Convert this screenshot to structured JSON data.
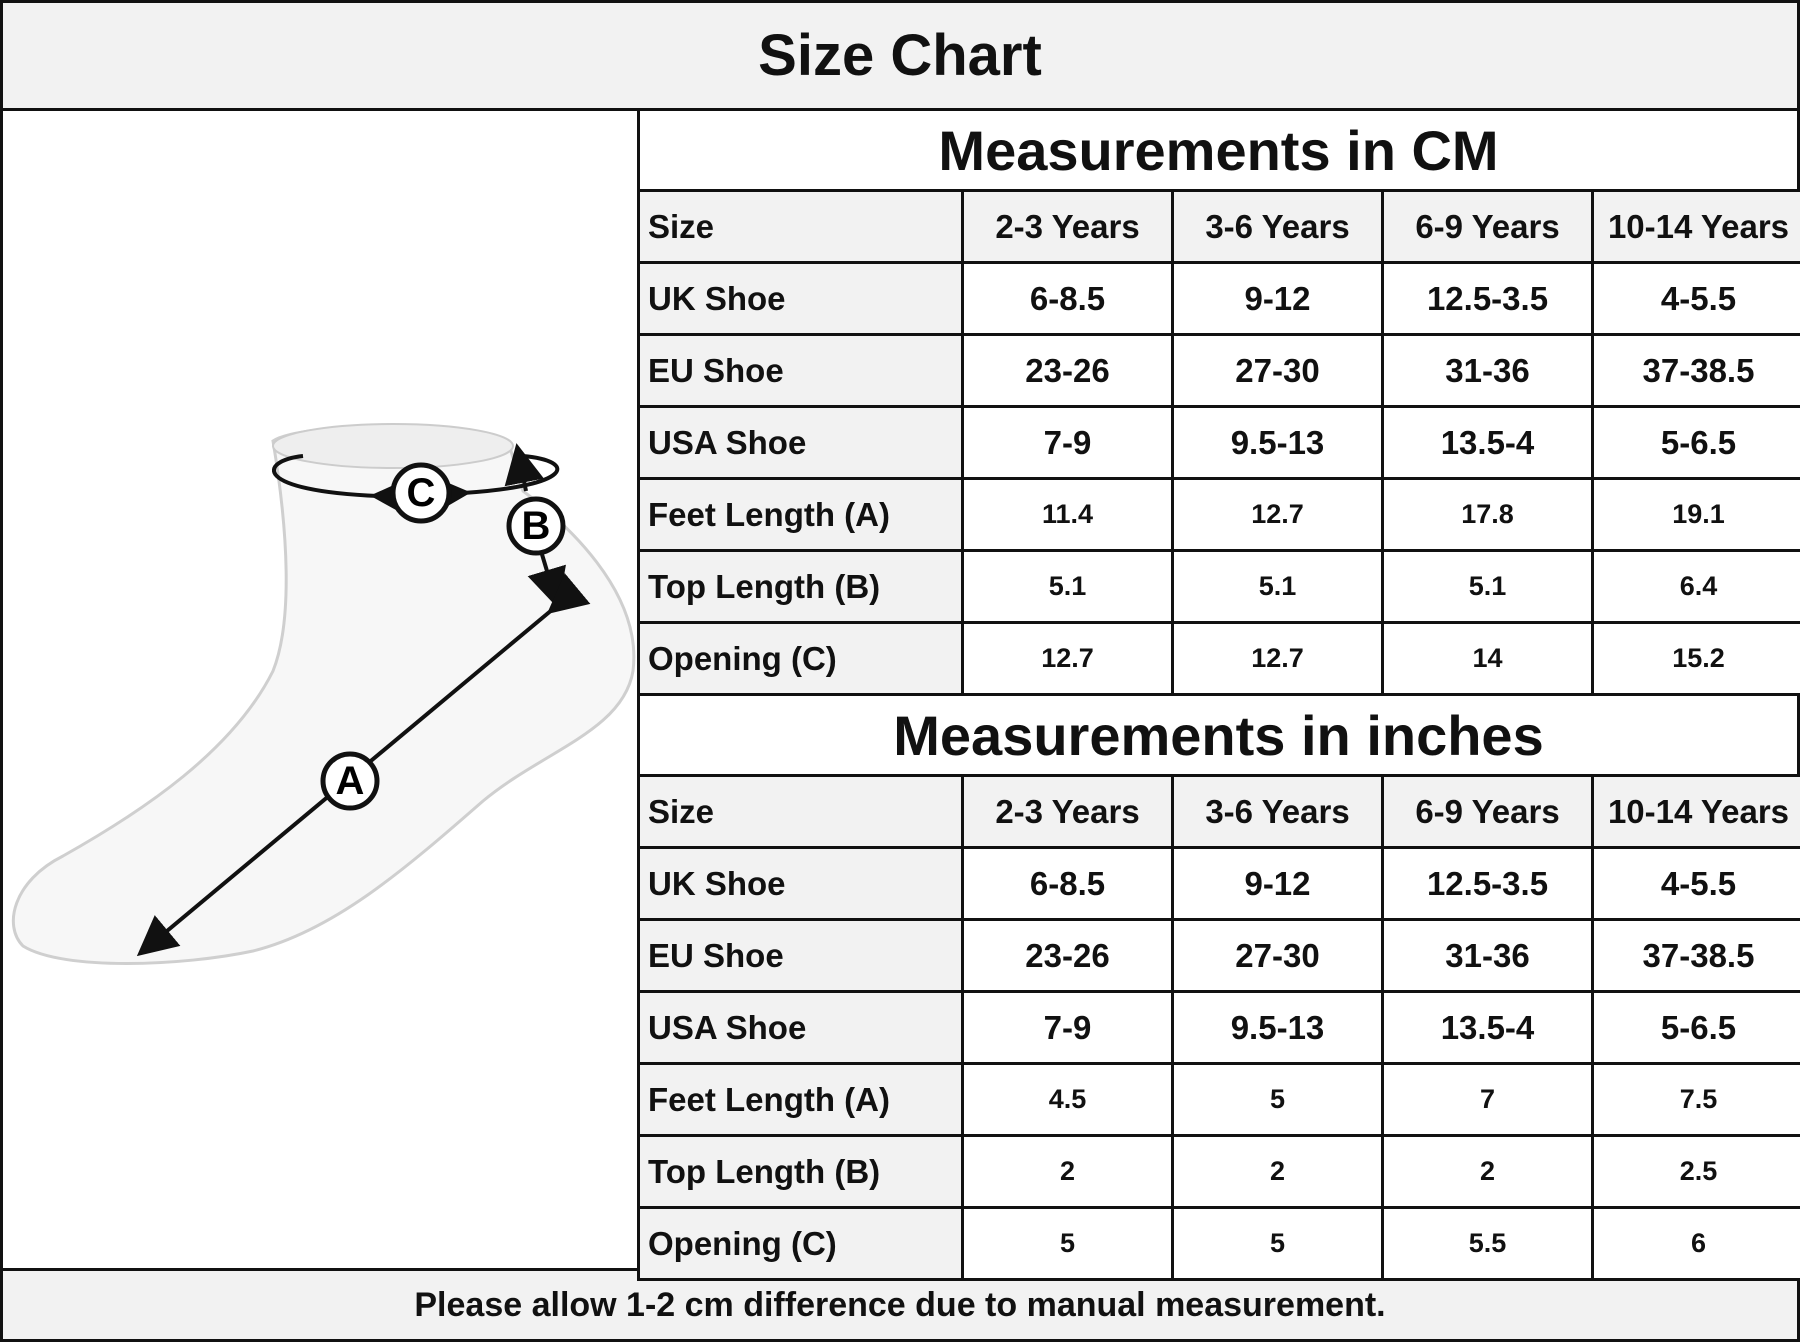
{
  "header": {
    "title": "Size Chart"
  },
  "diagram": {
    "labels": {
      "a": "A",
      "b": "B",
      "c": "C"
    }
  },
  "tables": [
    {
      "title": "Measurements in CM",
      "rows": [
        [
          "Size",
          "2-3 Years",
          "3-6 Years",
          "6-9 Years",
          "10-14 Years"
        ],
        [
          "UK Shoe",
          "6-8.5",
          "9-12",
          "12.5-3.5",
          "4-5.5"
        ],
        [
          "EU Shoe",
          "23-26",
          "27-30",
          "31-36",
          "37-38.5"
        ],
        [
          "USA Shoe",
          "7-9",
          "9.5-13",
          "13.5-4",
          "5-6.5"
        ],
        [
          "Feet Length (A)",
          "11.4",
          "12.7",
          "17.8",
          "19.1"
        ],
        [
          "Top Length (B)",
          "5.1",
          "5.1",
          "5.1",
          "6.4"
        ],
        [
          "Opening (C)",
          "12.7",
          "12.7",
          "14",
          "15.2"
        ]
      ]
    },
    {
      "title": "Measurements in inches",
      "rows": [
        [
          "Size",
          "2-3 Years",
          "3-6 Years",
          "6-9 Years",
          "10-14 Years"
        ],
        [
          "UK Shoe",
          "6-8.5",
          "9-12",
          "12.5-3.5",
          "4-5.5"
        ],
        [
          "EU Shoe",
          "23-26",
          "27-30",
          "31-36",
          "37-38.5"
        ],
        [
          "USA Shoe",
          "7-9",
          "9.5-13",
          "13.5-4",
          "5-6.5"
        ],
        [
          "Feet Length (A)",
          "4.5",
          "5",
          "7",
          "7.5"
        ],
        [
          "Top Length (B)",
          "2",
          "2",
          "2",
          "2.5"
        ],
        [
          "Opening (C)",
          "5",
          "5",
          "5.5",
          "6"
        ]
      ]
    }
  ],
  "footer": {
    "note": "Please allow 1-2 cm difference due to manual measurement."
  }
}
